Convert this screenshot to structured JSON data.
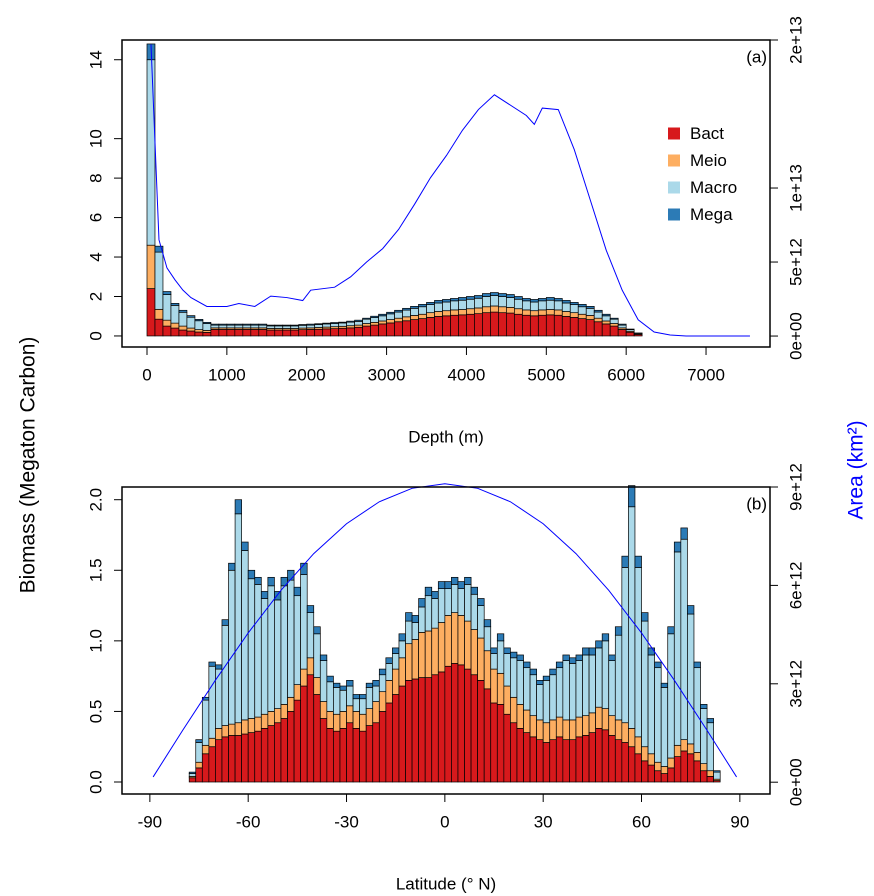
{
  "ylabel": "Biomass (Megaton Carbon)",
  "y2label": "Area (km²)",
  "chart_data": [
    {
      "type": "histogram",
      "stacked": true,
      "label": "(a)",
      "xlabel": "Depth (m)",
      "legend": "right",
      "xlim": [
        -313,
        7801
      ],
      "xticks": [
        0,
        1000,
        2000,
        3000,
        4000,
        5000,
        6000,
        7000
      ],
      "ylim": [
        -0.56,
        15
      ],
      "yticks": [
        0,
        2,
        4,
        6,
        8,
        10,
        14
      ],
      "y2lim": [
        -740000000000,
        20000000000000
      ],
      "y2ticks": [
        {
          "value": 0,
          "label": "0e+00"
        },
        {
          "value": 5000000000000,
          "label": "5e+12"
        },
        {
          "value": 10000000000000,
          "label": "1e+13"
        },
        {
          "value": 20000000000000,
          "label": "2e+13"
        }
      ],
      "y2color": "#0000ff",
      "bins": [
        0,
        100,
        200,
        300,
        400,
        500,
        600,
        700,
        800,
        900,
        1000,
        1100,
        1200,
        1300,
        1400,
        1500,
        1600,
        1700,
        1800,
        1900,
        2000,
        2100,
        2200,
        2300,
        2400,
        2500,
        2600,
        2700,
        2800,
        2900,
        3000,
        3100,
        3200,
        3300,
        3400,
        3500,
        3600,
        3700,
        3800,
        3900,
        4000,
        4100,
        4200,
        4300,
        4400,
        4500,
        4600,
        4700,
        4800,
        4900,
        5000,
        5100,
        5200,
        5300,
        5400,
        5500,
        5600,
        5700,
        5800,
        5900,
        6000,
        6100,
        6200
      ],
      "series": [
        {
          "name": "Bact",
          "color": "#d7191c",
          "values": [
            2.4,
            0.85,
            0.5,
            0.4,
            0.3,
            0.25,
            0.2,
            0.18,
            0.33,
            0.33,
            0.33,
            0.33,
            0.33,
            0.33,
            0.33,
            0.3,
            0.3,
            0.3,
            0.3,
            0.32,
            0.33,
            0.34,
            0.36,
            0.37,
            0.39,
            0.41,
            0.44,
            0.5,
            0.55,
            0.61,
            0.66,
            0.72,
            0.77,
            0.83,
            0.88,
            0.94,
            0.99,
            1.02,
            1.05,
            1.07,
            1.1,
            1.13,
            1.18,
            1.21,
            1.18,
            1.16,
            1.1,
            1.05,
            1.02,
            1.05,
            1.07,
            1.05,
            0.99,
            0.94,
            0.88,
            0.83,
            0.72,
            0.61,
            0.5,
            0.33,
            0.19,
            0.08
          ]
        },
        {
          "name": "Meio",
          "color": "#fdae61",
          "values": [
            2.2,
            0.5,
            0.3,
            0.25,
            0.2,
            0.15,
            0.12,
            0.1,
            0.08,
            0.08,
            0.08,
            0.08,
            0.08,
            0.08,
            0.08,
            0.08,
            0.08,
            0.08,
            0.08,
            0.08,
            0.08,
            0.09,
            0.09,
            0.1,
            0.1,
            0.11,
            0.11,
            0.13,
            0.14,
            0.15,
            0.17,
            0.18,
            0.2,
            0.21,
            0.22,
            0.24,
            0.25,
            0.26,
            0.27,
            0.27,
            0.28,
            0.29,
            0.3,
            0.31,
            0.3,
            0.29,
            0.28,
            0.27,
            0.26,
            0.27,
            0.27,
            0.27,
            0.25,
            0.24,
            0.22,
            0.21,
            0.18,
            0.15,
            0.13,
            0.08,
            0.05,
            0.02
          ]
        },
        {
          "name": "Macro",
          "color": "#abd9e9",
          "values": [
            9.4,
            2.9,
            1.3,
            0.9,
            0.7,
            0.55,
            0.45,
            0.35,
            0.14,
            0.14,
            0.14,
            0.14,
            0.14,
            0.14,
            0.14,
            0.13,
            0.13,
            0.13,
            0.13,
            0.14,
            0.14,
            0.15,
            0.16,
            0.16,
            0.17,
            0.18,
            0.19,
            0.22,
            0.24,
            0.26,
            0.29,
            0.31,
            0.34,
            0.36,
            0.38,
            0.41,
            0.43,
            0.44,
            0.46,
            0.47,
            0.48,
            0.49,
            0.52,
            0.53,
            0.52,
            0.5,
            0.48,
            0.46,
            0.44,
            0.46,
            0.47,
            0.46,
            0.43,
            0.41,
            0.38,
            0.36,
            0.31,
            0.26,
            0.22,
            0.14,
            0.08,
            0.04
          ]
        },
        {
          "name": "Mega",
          "color": "#2c7bb6",
          "values": [
            0.8,
            0.3,
            0.15,
            0.1,
            0.1,
            0.08,
            0.07,
            0.06,
            0.05,
            0.05,
            0.05,
            0.05,
            0.05,
            0.05,
            0.05,
            0.04,
            0.04,
            0.04,
            0.04,
            0.04,
            0.05,
            0.04,
            0.04,
            0.05,
            0.04,
            0.05,
            0.06,
            0.05,
            0.07,
            0.08,
            0.08,
            0.09,
            0.09,
            0.1,
            0.12,
            0.11,
            0.13,
            0.13,
            0.12,
            0.14,
            0.14,
            0.14,
            0.15,
            0.15,
            0.15,
            0.15,
            0.14,
            0.12,
            0.13,
            0.12,
            0.14,
            0.12,
            0.13,
            0.11,
            0.12,
            0.1,
            0.09,
            0.08,
            0.05,
            0.05,
            0.03,
            0.01
          ]
        }
      ],
      "area": {
        "axis": "y2",
        "color": "#0000ff",
        "x": [
          50,
          150,
          250,
          350,
          450,
          550,
          750,
          1000,
          1150,
          1350,
          1550,
          1750,
          1950,
          2050,
          2350,
          2550,
          2750,
          2950,
          3150,
          3350,
          3550,
          3750,
          3950,
          4150,
          4350,
          4550,
          4750,
          4850,
          4950,
          5150,
          5350,
          5550,
          5750,
          5950,
          6150,
          6350,
          6550,
          6750,
          7150,
          7550
        ],
        "values": [
          19700000000000,
          6500000000000,
          4600000000000,
          3800000000000,
          3100000000000,
          2600000000000,
          2000000000000,
          2000000000000,
          2200000000000,
          2000000000000,
          2700000000000,
          2600000000000,
          2400000000000,
          3100000000000,
          3300000000000,
          4000000000000,
          5000000000000,
          5900000000000,
          7200000000000,
          8900000000000,
          10700000000000,
          12200000000000,
          13900000000000,
          15300000000000,
          16300000000000,
          15600000000000,
          14900000000000,
          14300000000000,
          15400000000000,
          15300000000000,
          12600000000000,
          9200000000000,
          5800000000000,
          3100000000000,
          1100000000000,
          270000000000,
          70000000000,
          0,
          0,
          0
        ]
      }
    },
    {
      "type": "histogram",
      "stacked": true,
      "label": "(b)",
      "xlabel": "Latitude (° N)",
      "xlim": [
        -98.5,
        99.2
      ],
      "xticks": [
        -90,
        -60,
        -30,
        0,
        30,
        60,
        90
      ],
      "ylim": [
        -0.085,
        2.09
      ],
      "yticks": [
        {
          "value": 0,
          "label": "0.0"
        },
        {
          "value": 0.5,
          "label": "0.5"
        },
        {
          "value": 1,
          "label": "1.0"
        },
        {
          "value": 1.5,
          "label": "1.5"
        },
        {
          "value": 2,
          "label": "2.0"
        }
      ],
      "y2lim": [
        -360000000000,
        9000000000000
      ],
      "y2ticks": [
        {
          "value": 0,
          "label": "0e+00"
        },
        {
          "value": 3000000000000,
          "label": "3e+12"
        },
        {
          "value": 6000000000000,
          "label": "6e+12"
        },
        {
          "value": 9000000000000,
          "label": "9e+12"
        }
      ],
      "y2color": "#0000ff",
      "bins": [
        -78,
        -76,
        -74,
        -72,
        -70,
        -68,
        -66,
        -64,
        -62,
        -60,
        -58,
        -56,
        -54,
        -52,
        -50,
        -48,
        -46,
        -44,
        -42,
        -40,
        -38,
        -36,
        -34,
        -32,
        -30,
        -28,
        -26,
        -24,
        -22,
        -20,
        -18,
        -16,
        -14,
        -12,
        -10,
        -8,
        -6,
        -4,
        -2,
        0,
        2,
        4,
        6,
        8,
        10,
        12,
        14,
        16,
        18,
        20,
        22,
        24,
        26,
        28,
        30,
        32,
        34,
        36,
        38,
        40,
        42,
        44,
        46,
        48,
        50,
        52,
        54,
        56,
        58,
        60,
        62,
        64,
        66,
        68,
        70,
        72,
        74,
        76,
        78,
        80,
        82,
        84
      ],
      "series": [
        {
          "color": "#d7191c",
          "values": [
            0.03,
            0.1,
            0.2,
            0.25,
            0.3,
            0.32,
            0.33,
            0.33,
            0.34,
            0.35,
            0.36,
            0.38,
            0.4,
            0.42,
            0.45,
            0.5,
            0.58,
            0.68,
            0.76,
            0.62,
            0.45,
            0.38,
            0.36,
            0.38,
            0.42,
            0.38,
            0.36,
            0.4,
            0.42,
            0.5,
            0.56,
            0.62,
            0.68,
            0.72,
            0.73,
            0.74,
            0.74,
            0.76,
            0.78,
            0.82,
            0.84,
            0.83,
            0.8,
            0.76,
            0.72,
            0.66,
            0.56,
            0.55,
            0.48,
            0.42,
            0.38,
            0.35,
            0.32,
            0.3,
            0.28,
            0.3,
            0.32,
            0.3,
            0.3,
            0.32,
            0.33,
            0.35,
            0.38,
            0.37,
            0.33,
            0.3,
            0.28,
            0.25,
            0.2,
            0.15,
            0.12,
            0.08,
            0.06,
            0.1,
            0.18,
            0.22,
            0.2,
            0.15,
            0.08,
            0.04,
            0.01
          ]
        },
        {
          "color": "#fdae61",
          "values": [
            0.01,
            0.04,
            0.06,
            0.06,
            0.08,
            0.08,
            0.08,
            0.09,
            0.1,
            0.1,
            0.1,
            0.1,
            0.1,
            0.1,
            0.1,
            0.1,
            0.11,
            0.12,
            0.12,
            0.12,
            0.12,
            0.12,
            0.12,
            0.12,
            0.12,
            0.12,
            0.12,
            0.12,
            0.15,
            0.14,
            0.16,
            0.18,
            0.2,
            0.26,
            0.28,
            0.32,
            0.33,
            0.33,
            0.35,
            0.36,
            0.36,
            0.35,
            0.34,
            0.32,
            0.3,
            0.27,
            0.24,
            0.22,
            0.2,
            0.18,
            0.17,
            0.16,
            0.15,
            0.14,
            0.14,
            0.14,
            0.14,
            0.14,
            0.14,
            0.14,
            0.14,
            0.14,
            0.15,
            0.15,
            0.14,
            0.14,
            0.14,
            0.13,
            0.12,
            0.1,
            0.08,
            0.06,
            0.05,
            0.07,
            0.08,
            0.08,
            0.07,
            0.06,
            0.05,
            0.04,
            0.01
          ]
        },
        {
          "color": "#abd9e9",
          "values": [
            0.02,
            0.14,
            0.32,
            0.51,
            0.42,
            0.71,
            1.09,
            1.48,
            1.2,
            0.99,
            0.94,
            0.82,
            0.89,
            0.77,
            0.84,
            0.83,
            0.63,
            0.67,
            0.32,
            0.31,
            0.29,
            0.21,
            0.19,
            0.15,
            0.14,
            0.09,
            0.11,
            0.15,
            0.11,
            0.12,
            0.12,
            0.11,
            0.12,
            0.16,
            0.12,
            0.18,
            0.25,
            0.21,
            0.24,
            0.19,
            0.2,
            0.19,
            0.26,
            0.25,
            0.23,
            0.17,
            0.11,
            0.23,
            0.23,
            0.28,
            0.31,
            0.3,
            0.29,
            0.25,
            0.3,
            0.32,
            0.35,
            0.42,
            0.4,
            0.4,
            0.43,
            0.41,
            0.42,
            0.48,
            0.39,
            0.6,
            1.1,
            1.57,
            1.2,
            0.89,
            0.7,
            0.67,
            0.56,
            0.88,
            1.37,
            1.42,
            0.92,
            0.6,
            0.39,
            0.34,
            0.05
          ]
        },
        {
          "color": "#2c7bb6",
          "values": [
            0.01,
            0.02,
            0.02,
            0.03,
            0.03,
            0.04,
            0.05,
            0.1,
            0.06,
            0.06,
            0.05,
            0.05,
            0.06,
            0.06,
            0.06,
            0.07,
            0.06,
            0.08,
            0.05,
            0.05,
            0.04,
            0.04,
            0.03,
            0.03,
            0.04,
            0.03,
            0.03,
            0.03,
            0.04,
            0.04,
            0.04,
            0.04,
            0.05,
            0.06,
            0.05,
            0.06,
            0.06,
            0.05,
            0.05,
            0.05,
            0.05,
            0.05,
            0.05,
            0.05,
            0.05,
            0.05,
            0.04,
            0.05,
            0.04,
            0.04,
            0.04,
            0.04,
            0.04,
            0.03,
            0.03,
            0.04,
            0.04,
            0.04,
            0.04,
            0.04,
            0.05,
            0.05,
            0.05,
            0.05,
            0.04,
            0.06,
            0.08,
            0.15,
            0.08,
            0.06,
            0.05,
            0.04,
            0.03,
            0.05,
            0.07,
            0.08,
            0.06,
            0.04,
            0.03,
            0.03,
            0.01
          ]
        }
      ],
      "area": {
        "axis": "y2",
        "color": "#0000ff",
        "x": [
          -89,
          -80,
          -70,
          -60,
          -50,
          -40,
          -30,
          -20,
          -10,
          0,
          10,
          20,
          30,
          40,
          50,
          60,
          70,
          80,
          89
        ],
        "values": [
          160000000000,
          1580000000000,
          3110000000000,
          4550000000000,
          5850000000000,
          6970000000000,
          7880000000000,
          8550000000000,
          8960000000000,
          9100000000000,
          8960000000000,
          8550000000000,
          7880000000000,
          6970000000000,
          5850000000000,
          4550000000000,
          3110000000000,
          1580000000000,
          160000000000
        ]
      }
    }
  ]
}
